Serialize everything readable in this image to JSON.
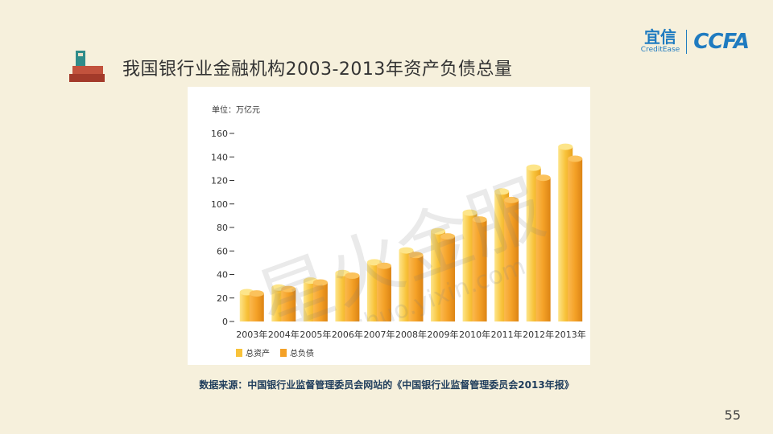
{
  "header": {
    "title": "我国银行业金融机构2003-2013年资产负债总量",
    "logo_cn": "宜信",
    "logo_en": "CreditEase",
    "logo_ccf": "CCFA"
  },
  "watermark": {
    "big": "星火金服",
    "small": "xinghuo.yixin.com"
  },
  "source": "数据来源：中国银行业监督管理委员会网站的《中国银行业监督管理委员会2013年报》",
  "page_number": "55",
  "colors": {
    "assets": "#f8c23a",
    "liabilities": "#f4a127",
    "background": "#f6f0dc"
  },
  "chart_data": {
    "type": "bar",
    "unit_label": "单位：万亿元",
    "categories": [
      "2003年",
      "2004年",
      "2005年",
      "2006年",
      "2007年",
      "2008年",
      "2009年",
      "2010年",
      "2011年",
      "2012年",
      "2013年"
    ],
    "series": [
      {
        "name": "总资产",
        "values": [
          27.7,
          31.6,
          37.5,
          43.9,
          53.1,
          63.2,
          79.5,
          95.3,
          113.3,
          133.6,
          151.4
        ]
      },
      {
        "name": "总负债",
        "values": [
          26.6,
          30.3,
          35.9,
          41.7,
          50.1,
          59.3,
          75.1,
          89.5,
          106.1,
          125.0,
          141.2
        ]
      }
    ],
    "ylim": [
      0,
      160
    ],
    "yticks": [
      0,
      20,
      40,
      60,
      80,
      100,
      120,
      140,
      160
    ],
    "grid": false,
    "legend": "bottom-left"
  }
}
